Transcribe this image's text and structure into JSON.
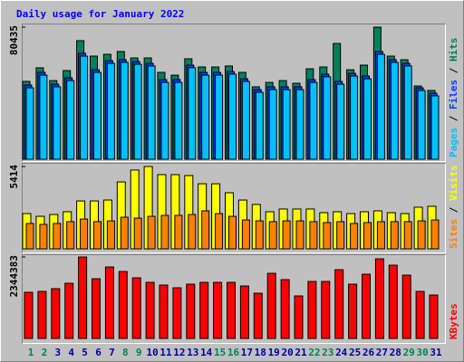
{
  "chart_data": [
    {
      "type": "bar",
      "title": "Daily usage for January 2022",
      "legend_separator": " / ",
      "ylim": [
        0,
        80435
      ],
      "yticks": [
        80435
      ],
      "series": [
        {
          "name": "Hits",
          "color": "#00805c",
          "values": [
            47400,
            55700,
            47900,
            54000,
            72200,
            62800,
            63900,
            65600,
            61700,
            61700,
            52900,
            51200,
            61200,
            56200,
            56200,
            56800,
            52900,
            44100,
            46800,
            47900,
            46300,
            55100,
            56200,
            70500,
            54500,
            57300,
            80435,
            62800,
            60600,
            44600,
            41900
          ]
        },
        {
          "name": "Files",
          "color": "#0040ff",
          "values": [
            45200,
            52900,
            45700,
            49600,
            64500,
            54500,
            60100,
            60600,
            59500,
            58400,
            48500,
            48500,
            57300,
            52900,
            52900,
            53400,
            49000,
            42400,
            44100,
            44100,
            44100,
            48500,
            51800,
            47400,
            52300,
            50700,
            65600,
            60600,
            58400,
            43500,
            40200
          ]
        },
        {
          "name": "Pages",
          "color": "#00c0ff",
          "values": [
            43500,
            51200,
            44100,
            47900,
            62800,
            52900,
            58400,
            59000,
            57800,
            56800,
            46800,
            46800,
            55700,
            51200,
            51200,
            51800,
            47400,
            40800,
            42400,
            42400,
            42400,
            46800,
            50200,
            45700,
            50700,
            49000,
            63900,
            59000,
            56800,
            41900,
            38600
          ]
        }
      ]
    },
    {
      "type": "bar",
      "legend_separator": " / ",
      "ylim": [
        0,
        5414
      ],
      "yticks": [
        5414
      ],
      "series": [
        {
          "name": "Visits",
          "color": "#ffff00",
          "values": [
            2320,
            2140,
            2260,
            2440,
            3150,
            3150,
            3210,
            4400,
            5180,
            5414,
            4880,
            4880,
            4820,
            4280,
            4280,
            3690,
            3210,
            2920,
            2440,
            2620,
            2620,
            2620,
            2380,
            2440,
            2320,
            2440,
            2500,
            2380,
            2320,
            2740,
            2800
          ]
        },
        {
          "name": "Sites",
          "color": "#ff8000",
          "values": [
            1670,
            1610,
            1670,
            1790,
            1960,
            1790,
            1840,
            2080,
            2020,
            2140,
            2200,
            2200,
            2260,
            2500,
            2320,
            2140,
            1900,
            1840,
            1790,
            1840,
            1840,
            1790,
            1730,
            1790,
            1670,
            1730,
            1790,
            1790,
            1790,
            1840,
            1900
          ]
        }
      ]
    },
    {
      "type": "bar",
      "ylim": [
        0,
        2344383
      ],
      "yticks": [
        2344383
      ],
      "categories": [
        "1",
        "2",
        "3",
        "4",
        "5",
        "6",
        "7",
        "8",
        "9",
        "10",
        "11",
        "12",
        "13",
        "14",
        "15",
        "16",
        "17",
        "18",
        "19",
        "20",
        "21",
        "22",
        "23",
        "24",
        "25",
        "26",
        "27",
        "28",
        "29",
        "30",
        "31"
      ],
      "category_colors": [
        "#00805c",
        "#00805c",
        "#0000a0",
        "#0000a0",
        "#0000a0",
        "#0000a0",
        "#0000a0",
        "#00805c",
        "#00805c",
        "#0000a0",
        "#0000a0",
        "#0000a0",
        "#0000a0",
        "#0000a0",
        "#00805c",
        "#00805c",
        "#0000a0",
        "#0000a0",
        "#0000a0",
        "#0000a0",
        "#0000a0",
        "#00805c",
        "#00805c",
        "#0000a0",
        "#0000a0",
        "#0000a0",
        "#0000a0",
        "#0000a0",
        "#00805c",
        "#00805c",
        "#0000a0"
      ],
      "series": [
        {
          "name": "KBytes",
          "color": "#ff0000",
          "values": [
            1328500,
            1354500,
            1432700,
            1589000,
            2344383,
            1719200,
            2057900,
            1927600,
            1745300,
            1615000,
            1536900,
            1458700,
            1562900,
            1615000,
            1615000,
            1615000,
            1510800,
            1302500,
            1875500,
            1693200,
            1224300,
            1641100,
            1641100,
            1979700,
            1562900,
            1849500,
            2292300,
            2110000,
            1823400,
            1354500,
            1250400
          ]
        }
      ]
    }
  ]
}
